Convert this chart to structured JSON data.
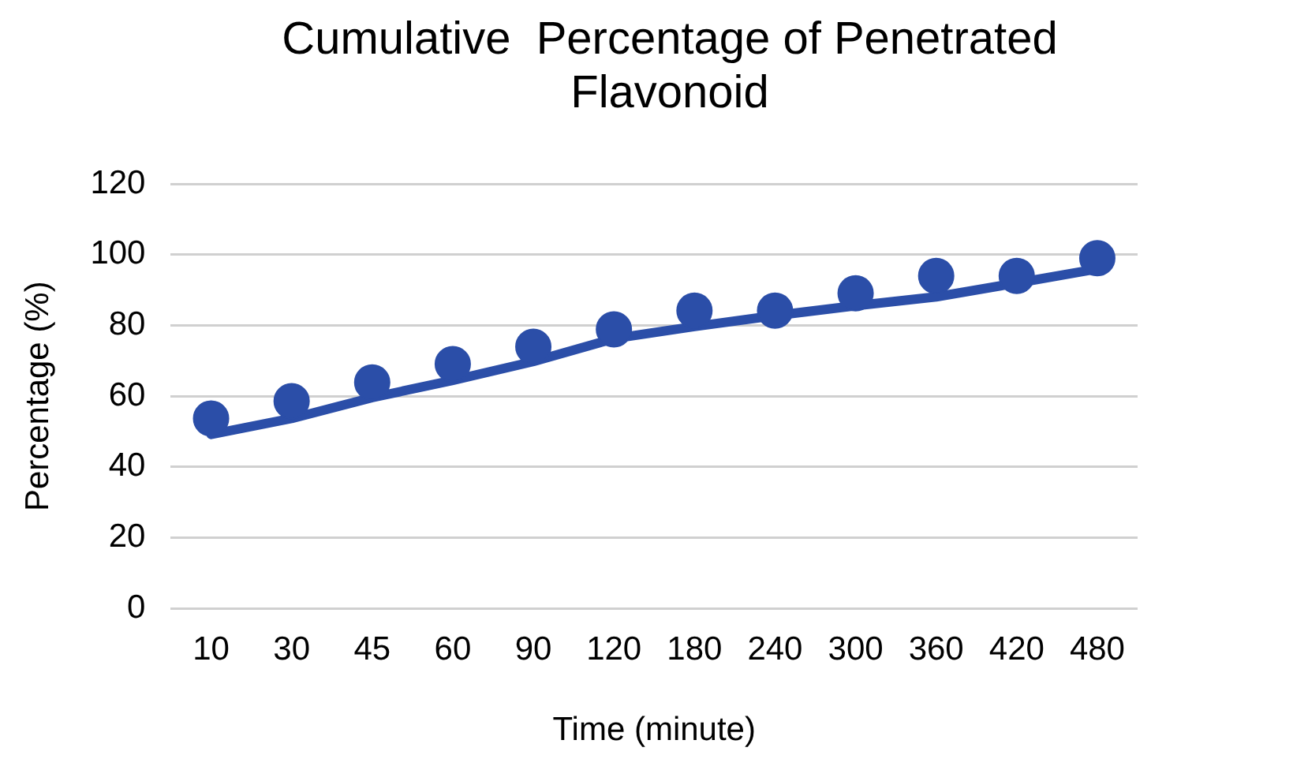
{
  "chart_data": {
    "type": "scatter",
    "title": "Cumulative  Percentage of Penetrated Flavonoid",
    "xlabel": "Time (minute)",
    "ylabel": "Percentage (%)",
    "categories": [
      "10",
      "30",
      "45",
      "60",
      "90",
      "120",
      "180",
      "240",
      "300",
      "360",
      "420",
      "480"
    ],
    "series": [
      {
        "marker": "circle",
        "color": "#2b4ea8",
        "values": [
          53.7,
          58.6,
          63.9,
          69.1,
          74,
          78.9,
          84.2,
          84.2,
          89.1,
          94,
          94,
          99
        ]
      },
      {
        "type": "line",
        "marker": "none",
        "color": "#2b4ea8",
        "values": [
          49.2,
          53.7,
          59.6,
          64.5,
          69.8,
          76.3,
          79.7,
          82.8,
          85.6,
          88.1,
          92,
          96
        ]
      }
    ],
    "ylim": [
      0,
      120
    ],
    "yticks": [
      0,
      20,
      40,
      60,
      80,
      100,
      120
    ],
    "grid": "y",
    "legend": false,
    "line_style": "solid"
  }
}
